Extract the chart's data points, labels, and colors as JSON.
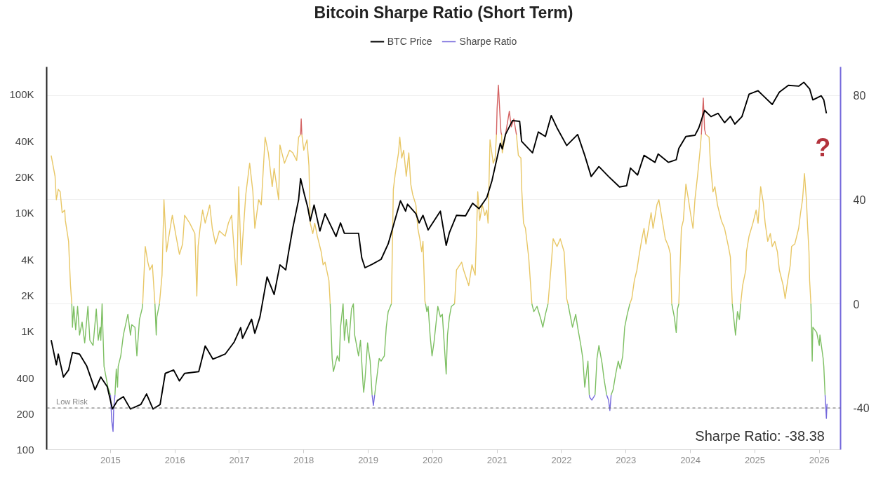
{
  "chart_data": {
    "type": "line",
    "title": "Bitcoin Sharpe Ratio (Short Term)",
    "xlim": [
      2014.01,
      2026.33
    ],
    "xticks": [
      2015,
      2016,
      2017,
      2018,
      2019,
      2020,
      2021,
      2022,
      2023,
      2024,
      2025,
      2026
    ],
    "ylim": [
      100,
      170000
    ],
    "yticks": [
      100,
      200,
      400,
      {
        "value": 1000,
        "label": "1K"
      },
      {
        "value": 2000,
        "label": "2K"
      },
      {
        "value": 4000,
        "label": "4K"
      },
      {
        "value": 10000,
        "label": "10K"
      },
      {
        "value": 20000,
        "label": "20K"
      },
      {
        "value": 40000,
        "label": "40K"
      },
      {
        "value": 100000,
        "label": "100K"
      }
    ],
    "y2lim": [
      -56,
      91
    ],
    "y2ticks": [
      -40,
      0,
      40,
      80
    ],
    "log": true,
    "grid": "y",
    "legend": "top",
    "ref_lines": [
      {
        "axis": "y2",
        "value": -40,
        "label": "Low Risk",
        "line_style": "dashed",
        "color": "#666666"
      }
    ],
    "annotations": [
      {
        "text": "?",
        "x": 2026.11,
        "y": 69000
      },
      "Sharpe Ratio: -38.38"
    ],
    "series": [
      {
        "name": "BTC Price",
        "color": "#000000",
        "x": [
          2014.08,
          2014.16,
          2014.19,
          2014.27,
          2014.35,
          2014.41,
          2014.52,
          2014.63,
          2014.76,
          2014.85,
          2014.95,
          2015.03,
          2015.11,
          2015.2,
          2015.31,
          2015.47,
          2015.56,
          2015.66,
          2015.77,
          2015.85,
          2015.98,
          2016.07,
          2016.15,
          2016.37,
          2016.47,
          2016.59,
          2016.78,
          2016.92,
          2017.02,
          2017.05,
          2017.19,
          2017.24,
          2017.32,
          2017.43,
          2017.54,
          2017.63,
          2017.72,
          2017.76,
          2017.83,
          2017.92,
          2017.95,
          2018.01,
          2018.06,
          2018.1,
          2018.16,
          2018.25,
          2018.33,
          2018.5,
          2018.57,
          2018.63,
          2018.85,
          2018.9,
          2018.95,
          2019.06,
          2019.2,
          2019.31,
          2019.41,
          2019.5,
          2019.58,
          2019.61,
          2019.74,
          2019.79,
          2019.85,
          2019.93,
          2020.12,
          2020.21,
          2020.26,
          2020.37,
          2020.51,
          2020.62,
          2020.72,
          2020.84,
          2020.92,
          2021.05,
          2021.08,
          2021.13,
          2021.24,
          2021.35,
          2021.38,
          2021.55,
          2021.64,
          2021.75,
          2021.84,
          2021.93,
          2022.08,
          2022.25,
          2022.36,
          2022.46,
          2022.58,
          2022.73,
          2022.9,
          2023.01,
          2023.07,
          2023.18,
          2023.28,
          2023.45,
          2023.5,
          2023.66,
          2023.78,
          2023.82,
          2023.93,
          2024.07,
          2024.13,
          2024.22,
          2024.32,
          2024.43,
          2024.53,
          2024.62,
          2024.69,
          2024.8,
          2024.91,
          2025.05,
          2025.13,
          2025.27,
          2025.38,
          2025.52,
          2025.68,
          2025.76,
          2025.85,
          2025.9,
          2026.03,
          2026.07,
          2026.11
        ],
        "values": [
          840,
          520,
          640,
          410,
          470,
          660,
          640,
          510,
          320,
          410,
          340,
          220,
          260,
          280,
          220,
          240,
          295,
          220,
          240,
          440,
          470,
          380,
          440,
          455,
          750,
          580,
          640,
          810,
          1070,
          870,
          1260,
          960,
          1320,
          2870,
          2040,
          3630,
          3290,
          4500,
          7460,
          12900,
          19400,
          14200,
          11200,
          8500,
          11600,
          7000,
          9800,
          6300,
          8200,
          6700,
          6700,
          4150,
          3430,
          3670,
          4040,
          5460,
          8500,
          12600,
          10300,
          11800,
          9800,
          8200,
          9500,
          7150,
          10300,
          5300,
          6800,
          9500,
          9400,
          12000,
          10800,
          13400,
          18600,
          38500,
          34500,
          45700,
          60000,
          59000,
          40000,
          32000,
          48000,
          44000,
          66000,
          52000,
          36900,
          45700,
          30500,
          20200,
          24500,
          20200,
          16500,
          16900,
          23800,
          20800,
          30500,
          26600,
          31300,
          26600,
          28000,
          34900,
          44000,
          45000,
          52000,
          73000,
          64700,
          69000,
          57500,
          65000,
          56000,
          64700,
          100000,
          107000,
          97000,
          82000,
          104000,
          119000,
          117000,
          126000,
          111000,
          89500,
          97000,
          89500,
          69000
        ]
      },
      {
        "name": "Sharpe Ratio",
        "color": "#7468dc",
        "axis": "y2",
        "x": [
          2015.0,
          2015.02,
          2015.04,
          2015.05,
          2015.07,
          null,
          2019.06,
          2019.08,
          2019.1,
          null,
          2022.43,
          2022.44,
          2022.47,
          2022.52,
          null,
          2022.7,
          2022.73,
          2022.75,
          2022.77,
          null,
          2026.09,
          2026.1,
          2026.11,
          2026.12
        ],
        "values": [
          -35,
          -45,
          -49,
          -40,
          -35,
          null,
          -35,
          -39,
          -35,
          null,
          -35,
          -36,
          -37,
          -35,
          null,
          -35,
          -37,
          -41,
          -35,
          null,
          -35,
          -39,
          -44,
          -38.38
        ]
      },
      {
        "color": "#e8c766",
        "axis": "y2",
        "x": [
          2014.08,
          2014.14,
          2014.16,
          2014.19,
          2014.22,
          2014.25,
          2014.29,
          2014.3,
          2014.35,
          2014.36,
          2014.38,
          2014.4,
          null,
          2015.5,
          2015.52,
          2015.54,
          2015.58,
          2015.61,
          2015.65,
          2015.69,
          null,
          2015.76,
          2015.8,
          2015.83,
          2015.87,
          2015.9,
          2015.96,
          2016.01,
          2016.07,
          2016.12,
          2016.15,
          2016.23,
          2016.31,
          2016.34,
          2016.36,
          2016.39,
          2016.43,
          2016.47,
          2016.54,
          2016.58,
          2016.63,
          2016.69,
          2016.78,
          2016.83,
          2016.88,
          2016.96,
          2016.99,
          2017.03,
          2017.05,
          2017.1,
          2017.16,
          2017.21,
          2017.24,
          2017.3,
          2017.34,
          2017.4,
          2017.45,
          2017.51,
          2017.54,
          2017.61,
          2017.63,
          2017.7,
          2017.78,
          2017.83,
          2017.89,
          2017.92,
          2017.95,
          null,
          2017.97,
          2018.0,
          2018.05,
          2018.08,
          2018.1,
          2018.14,
          2018.17,
          2018.21,
          2018.27,
          2018.3,
          2018.33,
          2018.39,
          2018.41,
          null,
          2019.36,
          2019.39,
          2019.42,
          2019.47,
          2019.49,
          2019.52,
          2019.55,
          2019.59,
          2019.63,
          2019.66,
          2019.69,
          2019.74,
          2019.77,
          2019.8,
          2019.83,
          2019.85,
          2019.88,
          2019.89,
          null,
          2020.34,
          2020.37,
          2020.45,
          2020.48,
          2020.56,
          2020.61,
          2020.66,
          2020.7,
          2020.73,
          2020.77,
          2020.81,
          2020.84,
          2020.86,
          2020.89,
          2020.94,
          2020.97,
          2020.99,
          null,
          2021.07,
          2021.08,
          2021.11,
          2021.13,
          null,
          2021.3,
          2021.33,
          2021.37,
          2021.38,
          2021.41,
          2021.44,
          2021.48,
          2021.49,
          2021.54,
          null,
          2021.79,
          2021.84,
          2021.87,
          2021.93,
          2021.98,
          2022.04,
          2022.08,
          2022.1,
          null,
          2023.06,
          2023.09,
          2023.13,
          2023.17,
          2023.2,
          2023.24,
          2023.28,
          2023.31,
          2023.39,
          2023.42,
          2023.48,
          2023.51,
          2023.55,
          2023.61,
          2023.66,
          2023.69,
          2023.71,
          null,
          2023.82,
          2023.86,
          2023.89,
          2023.93,
          2023.97,
          2024.0,
          2024.04,
          2024.07,
          2024.11,
          2024.15,
          2024.17,
          null,
          2024.24,
          2024.29,
          2024.31,
          2024.35,
          2024.38,
          2024.42,
          2024.48,
          2024.53,
          2024.59,
          2024.62,
          2024.65,
          null,
          2024.78,
          2024.81,
          2024.86,
          2024.87,
          2024.91,
          2024.97,
          2025.02,
          2025.05,
          2025.09,
          2025.13,
          2025.16,
          2025.2,
          2025.24,
          2025.27,
          2025.31,
          2025.35,
          2025.38,
          2025.44,
          2025.47,
          2025.51,
          2025.55,
          2025.57,
          2025.62,
          2025.68,
          2025.71,
          2025.74,
          2025.77,
          2025.8,
          2025.82,
          2025.84,
          2025.85,
          2025.87
        ],
        "values": [
          57,
          49,
          40,
          44,
          43,
          35,
          36,
          32,
          24,
          18,
          7,
          0,
          null,
          0,
          11,
          22,
          16,
          13,
          15,
          0,
          null,
          0,
          11,
          40,
          20,
          25,
          34,
          27,
          19,
          23,
          34,
          31,
          27,
          3,
          22,
          29,
          36,
          31,
          38,
          29,
          23,
          28,
          26,
          31,
          34,
          7,
          45,
          15,
          24,
          42,
          54,
          43,
          29,
          40,
          38,
          64,
          58,
          45,
          52,
          40,
          61,
          54,
          59,
          58,
          55,
          64,
          65,
          null,
          65,
          59,
          63,
          53,
          31,
          27,
          31,
          26,
          20,
          15,
          16,
          9,
          0,
          null,
          0,
          44,
          50,
          58,
          64,
          56,
          59,
          49,
          58,
          46,
          42,
          38,
          29,
          25,
          20,
          24,
          1,
          0,
          null,
          0,
          13,
          16,
          13,
          7,
          15,
          11,
          43,
          32,
          38,
          34,
          36,
          31,
          63,
          54,
          56,
          65,
          null,
          65,
          58,
          62,
          65,
          null,
          65,
          57,
          56,
          45,
          31,
          29,
          20,
          18,
          0,
          null,
          0,
          15,
          25,
          22,
          25,
          20,
          2,
          0,
          null,
          0,
          2,
          9,
          13,
          18,
          24,
          29,
          23,
          35,
          29,
          38,
          40,
          34,
          25,
          22,
          19,
          0,
          null,
          0,
          29,
          32,
          46,
          40,
          35,
          29,
          40,
          49,
          59,
          65,
          null,
          65,
          64,
          54,
          43,
          45,
          38,
          32,
          29,
          22,
          18,
          0,
          null,
          0,
          7,
          13,
          20,
          26,
          31,
          36,
          31,
          45,
          39,
          31,
          24,
          27,
          22,
          24,
          20,
          13,
          7,
          2,
          9,
          15,
          22,
          23,
          29,
          35,
          40,
          50,
          40,
          29,
          20,
          9,
          0
        ]
      },
      {
        "color": "#7dbf62",
        "axis": "y2",
        "x": [
          2014.4,
          2014.41,
          2014.43,
          2014.46,
          2014.49,
          2014.52,
          2014.56,
          2014.6,
          2014.65,
          2014.68,
          2014.73,
          2014.78,
          2014.81,
          2014.84,
          2014.85,
          2014.87,
          2014.9,
          2014.96,
          2015.0,
          null,
          2015.07,
          2015.09,
          2015.11,
          2015.12,
          2015.16,
          2015.2,
          2015.27,
          2015.31,
          2015.33,
          2015.38,
          2015.41,
          2015.45,
          2015.49,
          2015.5,
          null,
          2015.69,
          2015.71,
          2015.72,
          2015.76,
          null,
          2018.41,
          2018.44,
          2018.46,
          2018.52,
          2018.55,
          2018.57,
          2018.61,
          2018.63,
          2018.66,
          2018.7,
          2018.74,
          2018.77,
          2018.79,
          2018.85,
          2018.88,
          2018.92,
          2018.93,
          2018.95,
          2018.99,
          2019.03,
          2019.06,
          null,
          2019.1,
          2019.14,
          2019.17,
          2019.2,
          2019.25,
          2019.28,
          2019.31,
          2019.36,
          null,
          2019.89,
          2019.91,
          2019.93,
          2019.96,
          2019.99,
          2020.02,
          2020.08,
          2020.12,
          2020.15,
          2020.21,
          2020.23,
          2020.26,
          2020.29,
          2020.34,
          null,
          2021.54,
          2021.57,
          2021.62,
          2021.68,
          2021.71,
          2021.75,
          2021.79,
          null,
          2022.1,
          2022.17,
          2022.22,
          2022.25,
          2022.3,
          2022.33,
          2022.36,
          2022.41,
          2022.43,
          null,
          2022.52,
          2022.55,
          2022.58,
          2022.63,
          2022.66,
          2022.7,
          null,
          2022.77,
          2022.8,
          2022.84,
          2022.88,
          2022.91,
          2022.95,
          2022.98,
          2023.02,
          2023.06,
          null,
          2023.71,
          2023.75,
          2023.78,
          2023.8,
          2023.82,
          null,
          2024.65,
          2024.7,
          2024.73,
          2024.76,
          2024.78,
          null,
          2025.87,
          2025.88,
          2025.89,
          2025.9,
          2025.96,
          2026.0,
          2026.01,
          2026.06,
          2026.07,
          2026.09
        ],
        "values": [
          0,
          -9,
          -1,
          -10,
          -1,
          -12,
          -7,
          -15,
          -1,
          -14,
          -16,
          -2,
          -14,
          -9,
          -14,
          0,
          -24,
          -32,
          -35,
          null,
          -35,
          -25,
          -32,
          -24,
          -20,
          -12,
          -4,
          -12,
          -8,
          -9,
          -20,
          -6,
          -2,
          0,
          null,
          0,
          -12,
          -5,
          0,
          null,
          0,
          -21,
          -26,
          -20,
          -22,
          -9,
          0,
          -14,
          -6,
          -15,
          -2,
          0,
          -12,
          -20,
          -14,
          -31,
          -34,
          -29,
          -15,
          -22,
          -35,
          null,
          -35,
          -27,
          -21,
          -22,
          -20,
          -9,
          -3,
          0,
          null,
          0,
          -3,
          -1,
          -12,
          -20,
          -15,
          -1,
          -5,
          -4,
          -27,
          -12,
          -5,
          -1,
          0,
          null,
          0,
          -3,
          -1,
          -6,
          -9,
          -4,
          0,
          null,
          0,
          -9,
          -4,
          -9,
          -16,
          -21,
          -32,
          -22,
          -35,
          null,
          -35,
          -21,
          -16,
          -23,
          -29,
          -35,
          null,
          -35,
          -33,
          -27,
          -22,
          -25,
          -20,
          -9,
          -4,
          0,
          null,
          0,
          -5,
          -11,
          -2,
          0,
          null,
          0,
          -12,
          -3,
          -6,
          0,
          null,
          0,
          -9,
          -22,
          -9,
          -11,
          -16,
          -12,
          -21,
          -24,
          -35
        ]
      },
      {
        "color": "#d46363",
        "axis": "y2",
        "x": [
          2017.95,
          2017.96,
          2017.97,
          null,
          2020.99,
          2021.0,
          2021.02,
          2021.05,
          2021.06,
          2021.07,
          null,
          2021.13,
          2021.19,
          2021.22,
          2021.26,
          2021.3,
          null,
          2024.17,
          2024.2,
          2024.22,
          2024.24
        ],
        "values": [
          65,
          71,
          65,
          null,
          65,
          75,
          84,
          70,
          66,
          65,
          null,
          65,
          74,
          68,
          71,
          65,
          null,
          65,
          79,
          67,
          65
        ]
      }
    ]
  }
}
